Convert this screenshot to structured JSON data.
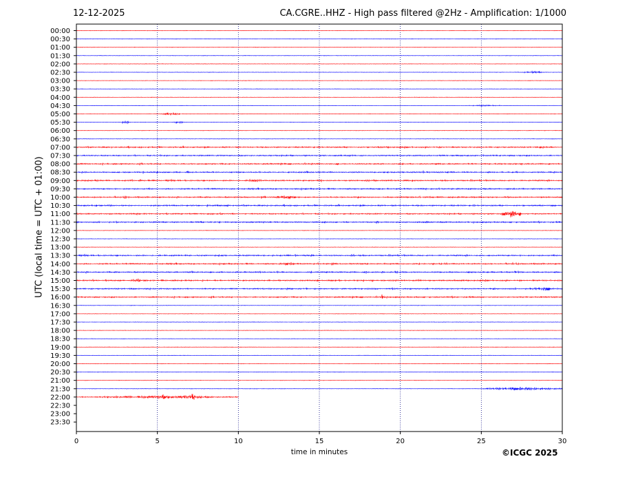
{
  "header": {
    "date": "12-12-2025",
    "title": "CA.CGRE..HHZ - High pass filtered @2Hz - Amplification: 1/1000"
  },
  "footer": {
    "copyright": "©ICGC 2025"
  },
  "colors": {
    "odd_trace": "#ff0000",
    "even_trace": "#0000ff",
    "grid": "#000080",
    "axis": "#000000"
  },
  "chart_data": {
    "type": "line",
    "title": "CA.CGRE..HHZ - High pass filtered @2Hz - Amplification: 1/1000",
    "xlabel": "time in minutes",
    "ylabel": "UTC (local time = UTC + 01:00)",
    "xlim": [
      0,
      30
    ],
    "xticks": [
      "0",
      "5",
      "10",
      "15",
      "20",
      "25",
      "30"
    ],
    "grid": "vertical dotted lines at every 5 minutes",
    "rows": [
      "00:00",
      "00:30",
      "01:00",
      "01:30",
      "02:00",
      "02:30",
      "03:00",
      "03:30",
      "04:00",
      "04:30",
      "05:00",
      "05:30",
      "06:00",
      "06:30",
      "07:00",
      "07:30",
      "08:00",
      "08:30",
      "09:00",
      "09:30",
      "10:00",
      "10:30",
      "11:00",
      "11:30",
      "12:00",
      "12:30",
      "13:00",
      "13:30",
      "14:00",
      "14:30",
      "15:00",
      "15:30",
      "16:00",
      "16:30",
      "17:00",
      "17:30",
      "18:00",
      "18:30",
      "19:00",
      "19:30",
      "20:00",
      "20:30",
      "21:00",
      "21:30",
      "22:00",
      "22:30",
      "23:00",
      "23:30"
    ],
    "row_colors": "alternating red / blue starting with red at 00:00",
    "trace_end": {
      "row": "22:00",
      "minute": 10
    },
    "noise_rows": [
      "07:00",
      "07:30",
      "08:00",
      "08:30",
      "09:00",
      "09:30",
      "10:00",
      "10:30",
      "11:00",
      "11:30",
      "13:30",
      "14:00",
      "14:30",
      "15:00",
      "15:30",
      "16:00"
    ],
    "events": [
      {
        "row": "02:30",
        "from": 27.5,
        "to": 28.8,
        "amp": 2.0
      },
      {
        "row": "04:30",
        "from": 24.0,
        "to": 26.2,
        "amp": 1.2
      },
      {
        "row": "05:00",
        "from": 5.2,
        "to": 6.5,
        "amp": 2.2
      },
      {
        "row": "05:30",
        "from": 2.7,
        "to": 3.3,
        "amp": 2.5
      },
      {
        "row": "05:30",
        "from": 6.0,
        "to": 6.7,
        "amp": 2.5
      },
      {
        "row": "07:00",
        "from": 18.5,
        "to": 19.3,
        "amp": 1.6
      },
      {
        "row": "07:00",
        "from": 28.5,
        "to": 29.2,
        "amp": 1.6
      },
      {
        "row": "09:00",
        "from": 10.5,
        "to": 11.5,
        "amp": 2.0
      },
      {
        "row": "10:00",
        "from": 2.7,
        "to": 3.3,
        "amp": 2.5
      },
      {
        "row": "10:00",
        "from": 11.3,
        "to": 11.8,
        "amp": 2.2
      },
      {
        "row": "10:00",
        "from": 12.3,
        "to": 13.6,
        "amp": 2.8
      },
      {
        "row": "11:00",
        "from": 26.2,
        "to": 27.6,
        "amp": 6.0
      },
      {
        "row": "13:30",
        "from": 16.8,
        "to": 17.2,
        "amp": 2.2
      },
      {
        "row": "14:00",
        "from": 12.5,
        "to": 13.5,
        "amp": 2.0
      },
      {
        "row": "14:00",
        "from": 22.3,
        "to": 23.0,
        "amp": 1.8
      },
      {
        "row": "15:00",
        "from": 3.5,
        "to": 4.2,
        "amp": 2.0
      },
      {
        "row": "15:30",
        "from": 28.0,
        "to": 29.8,
        "amp": 2.5
      },
      {
        "row": "16:00",
        "from": 18.8,
        "to": 19.0,
        "amp": 7.0
      },
      {
        "row": "21:30",
        "from": 25.0,
        "to": 30.0,
        "amp": 2.5
      },
      {
        "row": "22:00",
        "from": 0.0,
        "to": 10.0,
        "amp": 2.2
      },
      {
        "row": "22:00",
        "from": 5.2,
        "to": 5.7,
        "amp": 3.5
      },
      {
        "row": "22:00",
        "from": 6.5,
        "to": 7.8,
        "amp": 4.0
      }
    ]
  }
}
